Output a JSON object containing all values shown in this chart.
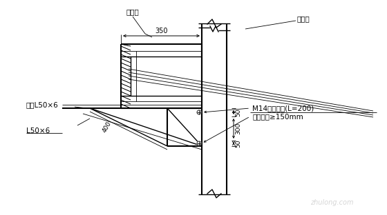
{
  "bg_color": "#ffffff",
  "labels": {
    "gang_yao_liang": "钢腰梁",
    "hu_po_zhuang": "护坡桩",
    "tong_chang": "通长L50×6",
    "l50x6": "L50×6",
    "bolt_label1": "M14膨胀螺栓(L=200)",
    "bolt_label2": "伸入桩身≥150mm",
    "dim_350": "350",
    "dim_50_top": "50",
    "dim_300": "300",
    "dim_50_bot": "50",
    "dim_400": "400"
  },
  "watermark": "zhulong.com"
}
